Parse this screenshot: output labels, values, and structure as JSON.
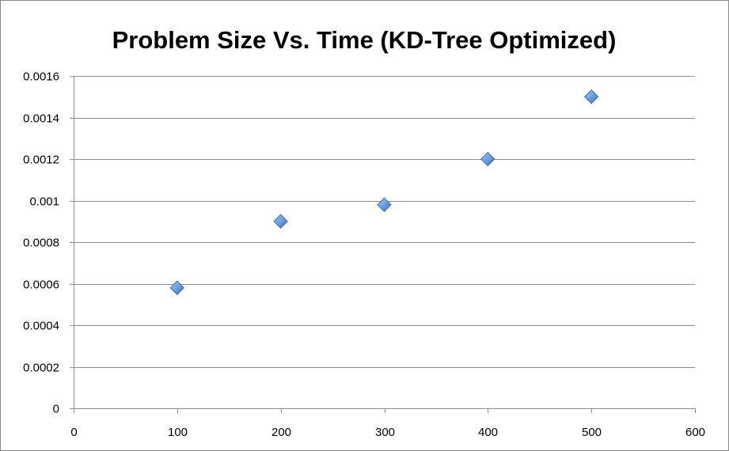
{
  "chart_data": {
    "type": "scatter",
    "title": "Problem Size Vs. Time (KD-Tree Optimized)",
    "xlabel": "",
    "ylabel": "",
    "xlim": [
      0,
      600
    ],
    "ylim": [
      0,
      0.0016
    ],
    "x_ticks": [
      0,
      100,
      200,
      300,
      400,
      500,
      600
    ],
    "x_tick_labels": [
      "0",
      "100",
      "200",
      "300",
      "400",
      "500",
      "600"
    ],
    "y_ticks": [
      0,
      0.0002,
      0.0004,
      0.0006,
      0.0008,
      0.001,
      0.0012,
      0.0014,
      0.0016
    ],
    "y_tick_labels": [
      "0",
      "0.0002",
      "0.0004",
      "0.0006",
      "0.0008",
      "0.001",
      "0.0012",
      "0.0014",
      "0.0016"
    ],
    "grid": "horizontal",
    "legend": "none",
    "marker": "diamond",
    "marker_color": "#5b8fd6",
    "series": [
      {
        "points": [
          {
            "x": 100,
            "y": 0.00058
          },
          {
            "x": 200,
            "y": 0.0009
          },
          {
            "x": 300,
            "y": 0.00098
          },
          {
            "x": 400,
            "y": 0.0012
          },
          {
            "x": 500,
            "y": 0.0015
          }
        ]
      }
    ]
  }
}
